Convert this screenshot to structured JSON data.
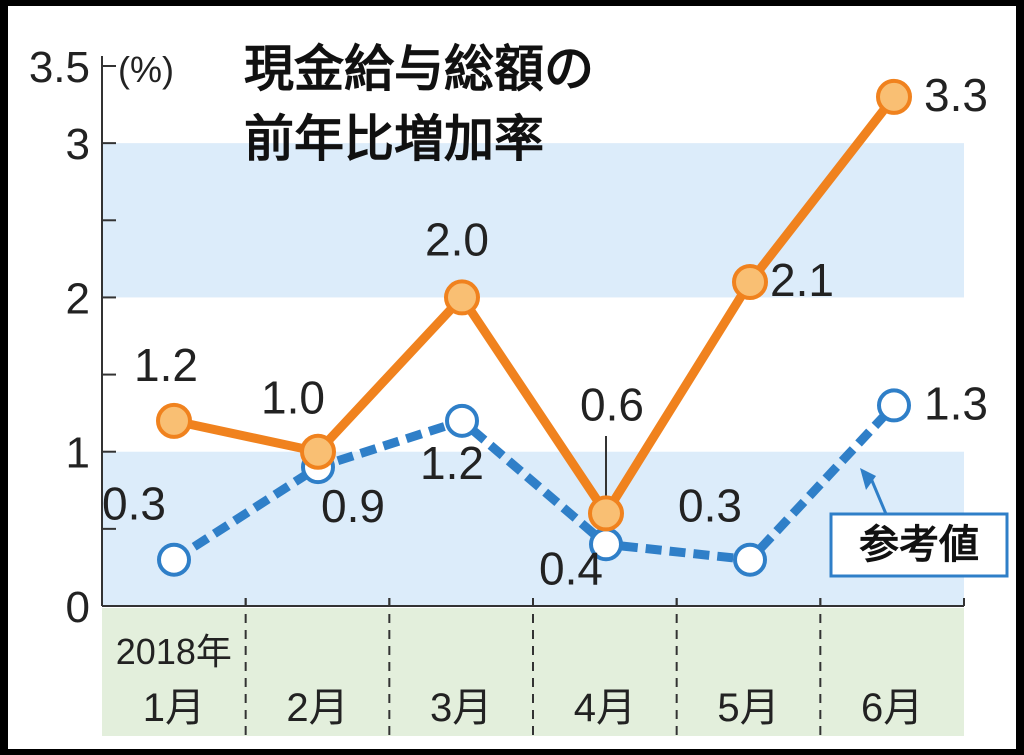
{
  "chart_data": {
    "type": "line",
    "title_lines": [
      "現金給与総額の",
      "前年比増加率"
    ],
    "y_unit": "(%)",
    "ylim": [
      0,
      3.5
    ],
    "yticks": [
      "0",
      "1",
      "2",
      "3",
      "3.5"
    ],
    "year_label": "2018年",
    "categories": [
      "1月",
      "2月",
      "3月",
      "4月",
      "5月",
      "6月"
    ],
    "series": [
      {
        "values": [
          1.2,
          1.0,
          2.0,
          0.6,
          2.1,
          3.3
        ],
        "labels": [
          "1.2",
          "1.0",
          "2.0",
          "0.6",
          "2.1",
          "3.3"
        ],
        "color": "#f0821e",
        "fill": "#f9bf73",
        "style": "solid"
      },
      {
        "name": "参考値",
        "values": [
          0.3,
          0.9,
          1.2,
          0.4,
          0.3,
          1.3
        ],
        "labels": [
          "0.3",
          "0.9",
          "1.2",
          "0.4",
          "0.3",
          "1.3"
        ],
        "color": "#2f7fc8",
        "fill": "#ffffff",
        "style": "dashed"
      }
    ],
    "bands": [
      [
        0,
        1
      ],
      [
        2,
        3
      ]
    ],
    "band_color": "#dcecfa",
    "category_band_color": "#e3efdc",
    "grid": false
  }
}
